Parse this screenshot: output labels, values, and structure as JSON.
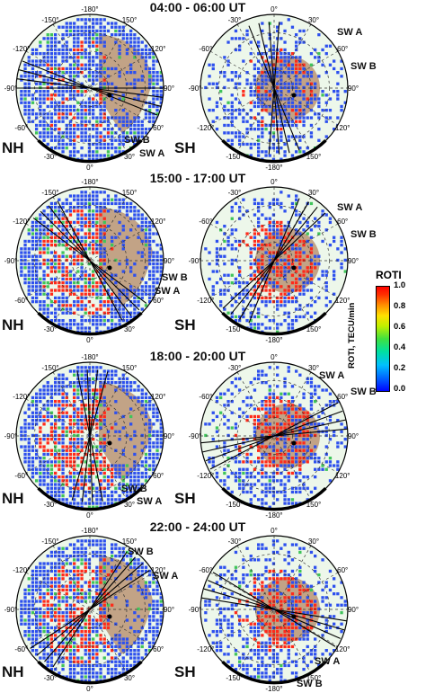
{
  "panels": [
    {
      "time_label": "04:00 - 06:00 UT",
      "nh": {
        "label": "NH",
        "sw": [
          "SW B",
          "SW A"
        ],
        "lon_ticks": [
          "-180°",
          "-150°",
          "150°",
          "-120°",
          "120°",
          "-90°",
          "90°",
          "-60°",
          "60°",
          "-30°",
          "30°",
          "0°"
        ]
      },
      "sh": {
        "label": "SH",
        "sw": [
          "SW A",
          "SW B"
        ],
        "lon_ticks": [
          "0°",
          "-30°",
          "30°",
          "-60°",
          "60°",
          "-90°",
          "90°",
          "-120°",
          "120°",
          "-150°",
          "150°",
          "-180°"
        ]
      }
    },
    {
      "time_label": "15:00 - 17:00 UT",
      "nh": {
        "label": "NH",
        "sw": [
          "SW B",
          "SW A"
        ],
        "lon_ticks": [
          "-180°",
          "-150°",
          "150°",
          "-120°",
          "120°",
          "-90°",
          "90°",
          "-60°",
          "60°",
          "-30°",
          "30°",
          "0°"
        ]
      },
      "sh": {
        "label": "SH",
        "sw": [
          "SW A",
          "SW B"
        ],
        "lon_ticks": [
          "0°",
          "-30°",
          "30°",
          "-60°",
          "60°",
          "-90°",
          "90°",
          "-120°",
          "120°",
          "-150°",
          "150°",
          "-180°"
        ]
      }
    },
    {
      "time_label": "18:00 - 20:00 UT",
      "nh": {
        "label": "NH",
        "sw": [
          "SW B",
          "SW A"
        ],
        "lon_ticks": [
          "-180°",
          "-150°",
          "150°",
          "-120°",
          "120°",
          "-90°",
          "90°",
          "-60°",
          "60°",
          "-30°",
          "30°",
          "0°"
        ]
      },
      "sh": {
        "label": "SH",
        "sw": [
          "SW A",
          "SW B"
        ],
        "lon_ticks": [
          "0°",
          "-30°",
          "30°",
          "-60°",
          "60°",
          "-90°",
          "90°",
          "-120°",
          "120°",
          "-150°",
          "150°",
          "-180°"
        ]
      }
    },
    {
      "time_label": "22:00 - 24:00 UT",
      "nh": {
        "label": "NH",
        "sw": [
          "SW B",
          "SW A"
        ],
        "lon_ticks": [
          "-180°",
          "-150°",
          "150°",
          "-120°",
          "120°",
          "-90°",
          "90°",
          "-60°",
          "60°",
          "-30°",
          "30°",
          "0°"
        ]
      },
      "sh": {
        "label": "SH",
        "sw": [
          "SW A",
          "SW B"
        ],
        "lon_ticks": [
          "0°",
          "-30°",
          "30°",
          "-60°",
          "60°",
          "-90°",
          "90°",
          "-120°",
          "120°",
          "-150°",
          "150°",
          "-180°"
        ]
      }
    }
  ],
  "colorbar": {
    "title": "ROTI",
    "unit": "ROTI, TECU/min",
    "ticks": [
      "1.0",
      "0.8",
      "0.6",
      "0.4",
      "0.2",
      "0.0"
    ],
    "range": [
      0.0,
      1.0
    ],
    "colors": [
      "#0000ff",
      "#0060ff",
      "#00c0ff",
      "#00e0a0",
      "#40e040",
      "#c0f000",
      "#ffe000",
      "#ff9000",
      "#ff3000",
      "#ff0000"
    ]
  },
  "map_colors": {
    "background": "#edf7ea",
    "grid_dash": "#333333",
    "land": "#c2a386",
    "low_roti": "#2d50ee",
    "mid_roti": "#3fc45a",
    "high_roti": "#ff2a1a"
  }
}
